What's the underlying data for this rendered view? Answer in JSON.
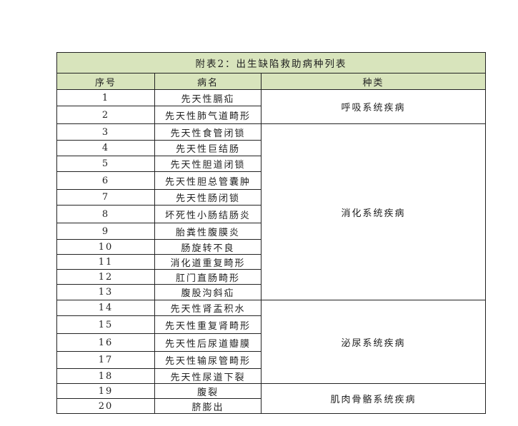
{
  "table": {
    "title": "附表2：出生缺陷救助病种列表",
    "headers": [
      "序号",
      "病名",
      "种类"
    ],
    "rows": [
      {
        "no": "1",
        "name": "先天性膈疝"
      },
      {
        "no": "2",
        "name": "先天性肺气道畸形"
      },
      {
        "no": "3",
        "name": "先天性食管闭锁"
      },
      {
        "no": "4",
        "name": "先天性巨结肠"
      },
      {
        "no": "5",
        "name": "先天性胆道闭锁"
      },
      {
        "no": "6",
        "name": "先天性胆总管囊肿"
      },
      {
        "no": "7",
        "name": "先天性肠闭锁"
      },
      {
        "no": "8",
        "name": "坏死性小肠结肠炎"
      },
      {
        "no": "9",
        "name": "胎粪性腹膜炎"
      },
      {
        "no": "10",
        "name": "肠旋转不良"
      },
      {
        "no": "11",
        "name": "消化道重复畸形"
      },
      {
        "no": "12",
        "name": "肛门直肠畸形"
      },
      {
        "no": "13",
        "name": "腹股沟斜疝"
      },
      {
        "no": "14",
        "name": "先天性肾盂积水"
      },
      {
        "no": "15",
        "name": "先天性重复肾畸形"
      },
      {
        "no": "16",
        "name": "先天性后尿道瓣膜"
      },
      {
        "no": "17",
        "name": "先天性输尿管畸形"
      },
      {
        "no": "18",
        "name": "先天性尿道下裂"
      },
      {
        "no": "19",
        "name": "腹裂"
      },
      {
        "no": "20",
        "name": "脐膨出"
      }
    ],
    "categories": [
      {
        "label": "呼吸系统疾病",
        "span": 2
      },
      {
        "label": "消化系统疾病",
        "span": 11
      },
      {
        "label": "泌尿系统疾病",
        "span": 5
      },
      {
        "label": "肌肉骨骼系统疾病",
        "span": 2
      }
    ],
    "header_color": "#d8e4bc"
  }
}
